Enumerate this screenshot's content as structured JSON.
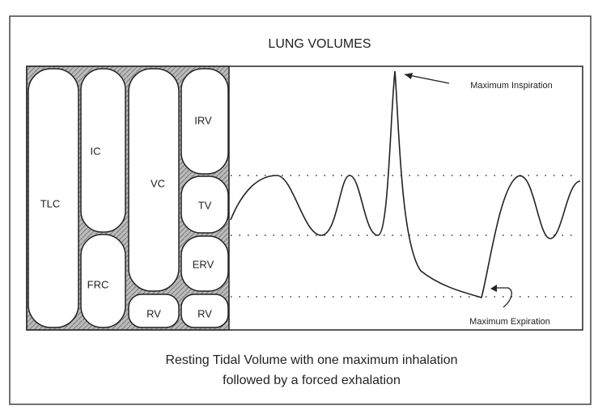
{
  "title": "LUNG VOLUMES",
  "volumes": [
    {
      "label": "TLC"
    },
    {
      "label": "IC"
    },
    {
      "label": "FRC"
    },
    {
      "label": "VC"
    },
    {
      "label": "RV"
    },
    {
      "label": "IRV"
    },
    {
      "label": "TV"
    },
    {
      "label": "ERV"
    },
    {
      "label": "RV"
    }
  ],
  "annotations": [
    {
      "text": "Maximum Inspiration"
    },
    {
      "text": "Maximum Expiration"
    }
  ],
  "caption": [
    "Resting Tidal Volume with one maximum inhalation",
    "followed by a forced exhalation"
  ]
}
